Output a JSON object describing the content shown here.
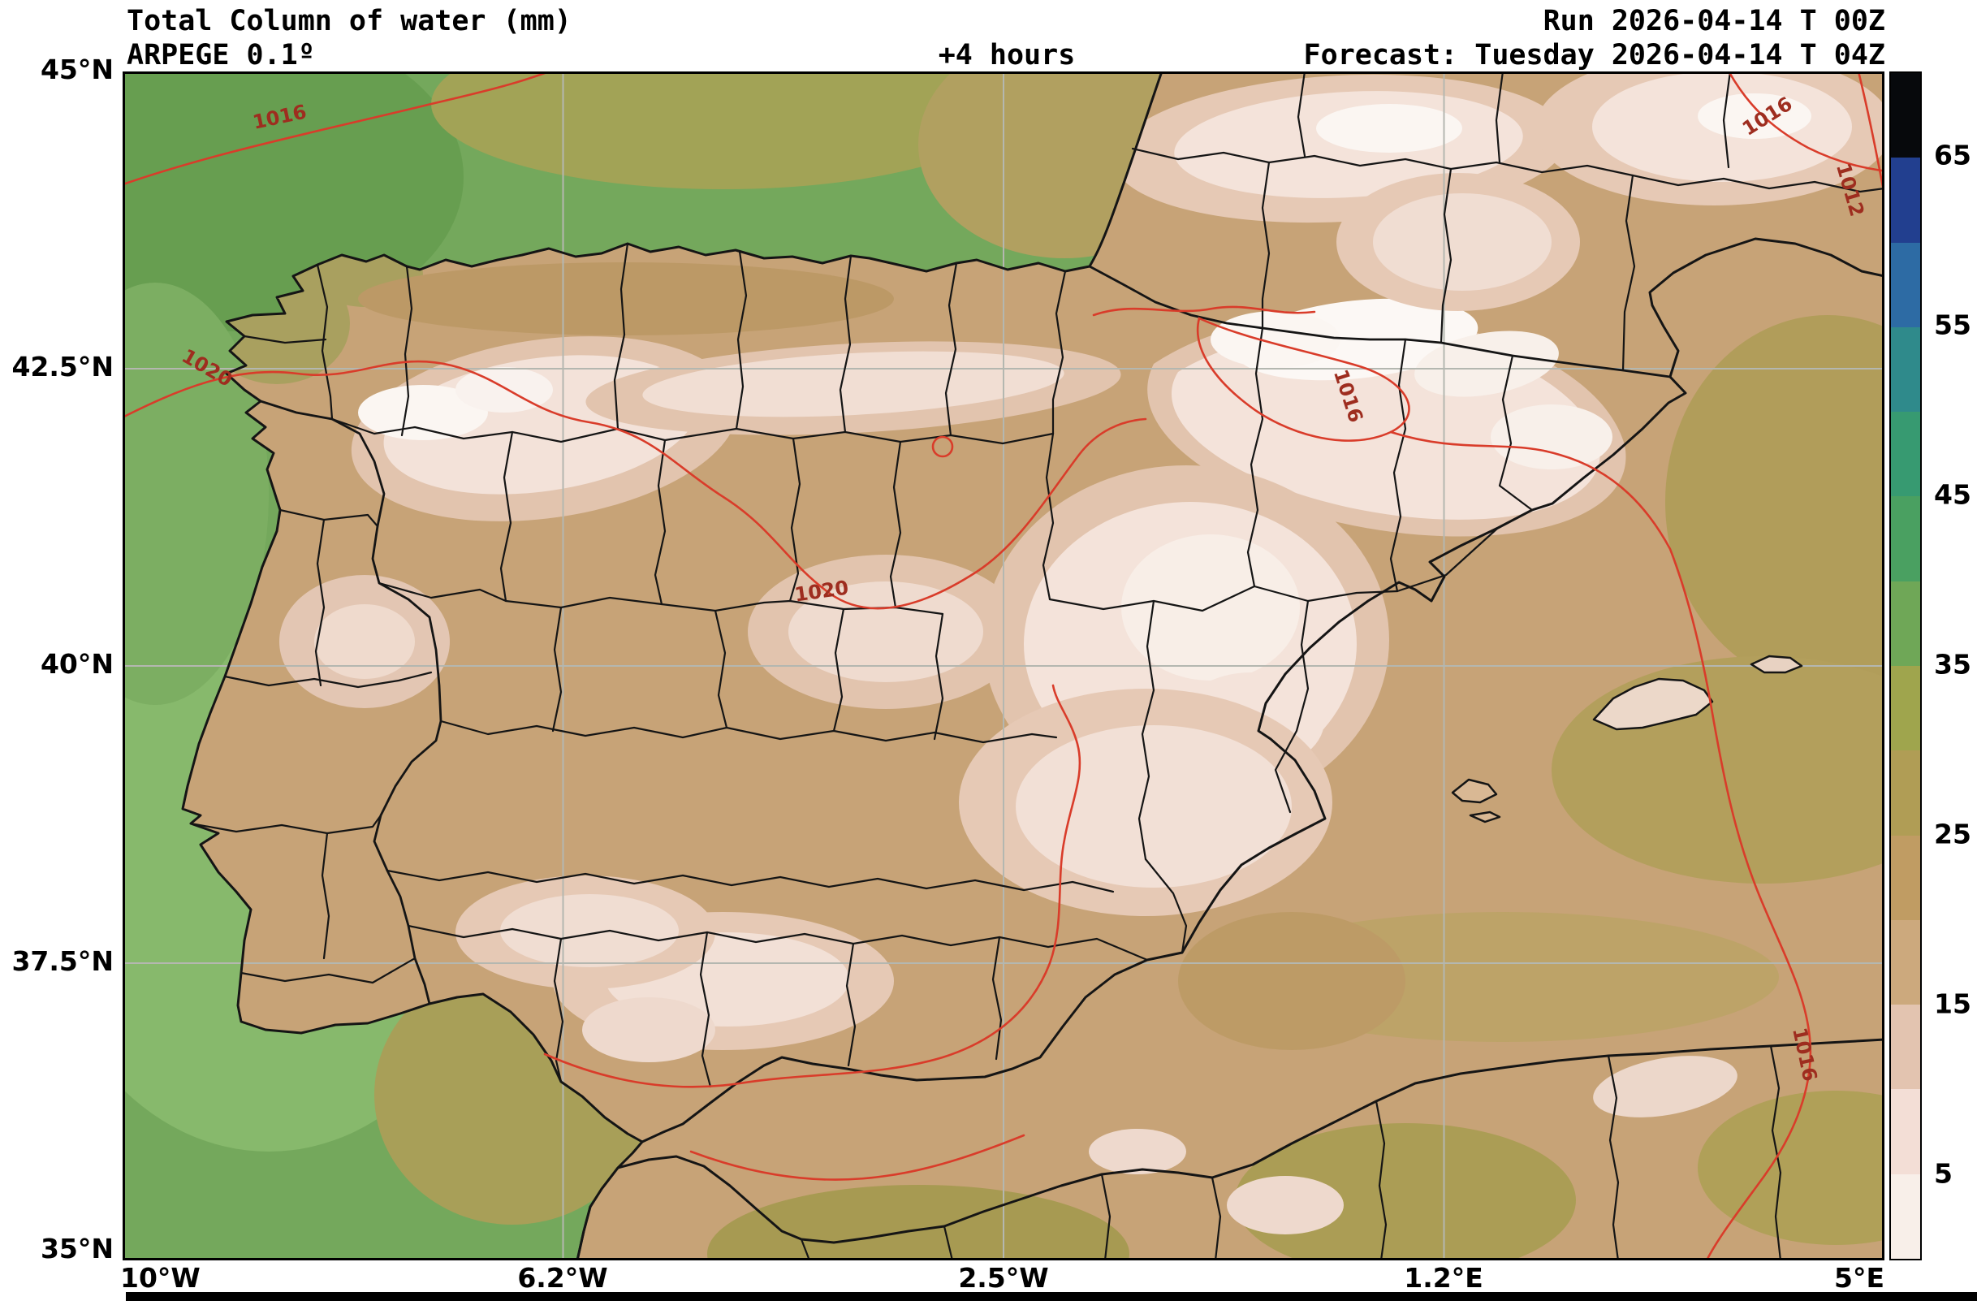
{
  "header": {
    "title": "Total Column of water (mm)",
    "model": "ARPEGE 0.1º",
    "lead": "+4 hours",
    "run": "Run 2026-04-14 T 00Z",
    "forecast": "Forecast: Tuesday 2026-04-14 T 04Z"
  },
  "axes": {
    "y_ticks": [
      "45°N",
      "42.5°N",
      "40°N",
      "37.5°N",
      "35°N"
    ],
    "x_ticks": [
      "10°W",
      "6.2°W",
      "2.5°W",
      "1.2°E",
      "5°E"
    ]
  },
  "colorbar": {
    "unit": "mm",
    "min": 0,
    "max": 70,
    "ticks": [
      65,
      55,
      45,
      35,
      25,
      15,
      5
    ],
    "segments_bottom_to_top": [
      "#f8efe9",
      "#f3ded6",
      "#e3c4b0",
      "#cca97d",
      "#c09c63",
      "#b09d55",
      "#9fa54d",
      "#6fa757",
      "#4aa061",
      "#379a71",
      "#2f8a8b",
      "#2d6ba4",
      "#223f8f",
      "#07090c"
    ]
  },
  "contours": {
    "color": "#d93c2a",
    "labels": [
      "1016",
      "1020",
      "1020",
      "1016",
      "1016",
      "1012",
      "1016"
    ]
  },
  "chart_data": {
    "type": "heatmap",
    "title": "Total Column of water (mm)",
    "model": "ARPEGE 0.1º",
    "run": "2026-04-14 00Z",
    "forecast_valid": "Tuesday 2026-04-14 04Z",
    "lead_hours": 4,
    "region": "Iberian Peninsula",
    "x_axis_ticks": [
      "10°W",
      "6.2°W",
      "2.5°W",
      "1.2°E",
      "5°E"
    ],
    "y_axis_ticks": [
      "35°N",
      "37.5°N",
      "40°N",
      "42.5°N",
      "45°N"
    ],
    "colorbar_ticks_mm": [
      5,
      15,
      25,
      35,
      45,
      55,
      65
    ],
    "colorbar_range_mm": [
      0,
      70
    ],
    "isobar_labels_hpa": [
      1012,
      1016,
      1020
    ]
  }
}
